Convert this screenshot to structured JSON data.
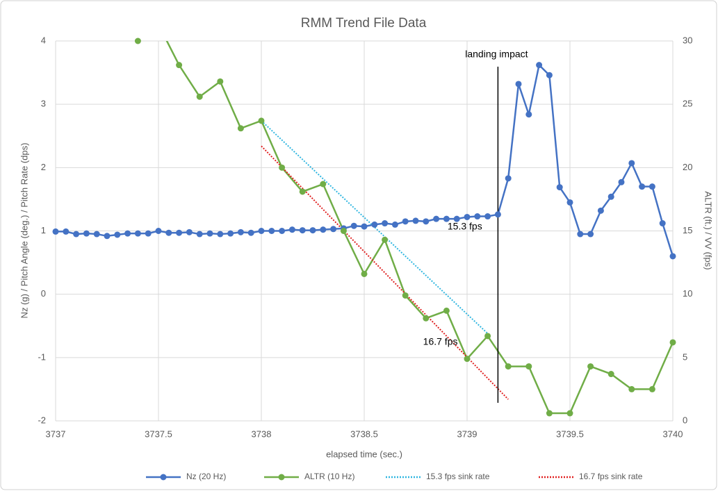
{
  "chart_data": {
    "type": "line",
    "title": "RMM Trend File Data",
    "x_label": "elapsed time (sec.)",
    "y_label": "Nz (g) / Pitch Angle (deg.) / Pitch Rate (dps)",
    "y2_label": "ALTR (ft.) / VV (fps)",
    "xlim": [
      3737,
      3740
    ],
    "xticks": [
      3737,
      3737.5,
      3738,
      3738.5,
      3739,
      3739.5,
      3740
    ],
    "ylim": [
      -2,
      4
    ],
    "yticks": [
      -2,
      -1,
      0,
      1,
      2,
      3,
      4
    ],
    "y2lim": [
      0,
      30
    ],
    "y2ticks": [
      0,
      5,
      10,
      15,
      20,
      25,
      30
    ],
    "grid": true,
    "legend": "bottom",
    "series": [
      {
        "name": "Nz (20 Hz)",
        "color": "#4472c4",
        "style": "solid",
        "marker": true,
        "axis": "y",
        "x": [
          3737,
          3737.05,
          3737.1,
          3737.15,
          3737.2,
          3737.25,
          3737.3,
          3737.35,
          3737.4,
          3737.45,
          3737.5,
          3737.55,
          3737.6,
          3737.65,
          3737.7,
          3737.75,
          3737.8,
          3737.85,
          3737.9,
          3737.95,
          3738,
          3738.05,
          3738.1,
          3738.15,
          3738.2,
          3738.25,
          3738.3,
          3738.35,
          3738.4,
          3738.45,
          3738.5,
          3738.55,
          3738.6,
          3738.65,
          3738.7,
          3738.75,
          3738.8,
          3738.85,
          3738.9,
          3738.95,
          3739,
          3739.05,
          3739.1,
          3739.15,
          3739.2,
          3739.25,
          3739.3,
          3739.35,
          3739.4,
          3739.45,
          3739.5,
          3739.55,
          3739.6,
          3739.65,
          3739.7,
          3739.75,
          3739.8,
          3739.85,
          3739.9,
          3739.95,
          3740
        ],
        "values": [
          0.99,
          0.99,
          0.95,
          0.96,
          0.95,
          0.92,
          0.94,
          0.96,
          0.96,
          0.96,
          1.0,
          0.97,
          0.97,
          0.98,
          0.95,
          0.96,
          0.95,
          0.96,
          0.98,
          0.97,
          1.0,
          1.0,
          1.0,
          1.02,
          1.01,
          1.01,
          1.02,
          1.03,
          1.04,
          1.08,
          1.07,
          1.1,
          1.12,
          1.1,
          1.15,
          1.16,
          1.15,
          1.19,
          1.19,
          1.19,
          1.22,
          1.23,
          1.23,
          1.26,
          1.83,
          3.32,
          2.84,
          3.62,
          3.46,
          1.69,
          1.45,
          0.95,
          0.95,
          1.32,
          1.54,
          1.77,
          2.07,
          1.7,
          1.7,
          1.12,
          0.6
        ]
      },
      {
        "name": "ALTR (10 Hz)",
        "color": "#70ad47",
        "style": "solid",
        "marker": true,
        "axis": "y2",
        "x": [
          3737.4,
          3737.5,
          3737.6,
          3737.7,
          3737.8,
          3737.9,
          3738,
          3738.1,
          3738.2,
          3738.3,
          3738.4,
          3738.5,
          3738.6,
          3738.7,
          3738.8,
          3738.9,
          3739,
          3739.1,
          3739.2,
          3739.3,
          3739.4,
          3739.5,
          3739.6,
          3739.7,
          3739.8,
          3739.9,
          3740
        ],
        "values": [
          30,
          31.3,
          28.1,
          25.6,
          26.8,
          23.1,
          23.7,
          20.0,
          18.1,
          18.7,
          15.0,
          11.6,
          14.3,
          9.9,
          8.1,
          8.7,
          4.9,
          6.7,
          4.3,
          4.3,
          0.6,
          0.6,
          4.3,
          3.7,
          2.5,
          2.5,
          6.2
        ]
      },
      {
        "name": "15.3 fps sink rate",
        "color": "#2fb6e0",
        "style": "dotted",
        "marker": false,
        "axis": "y2",
        "annotation": "15.3 fps",
        "x": [
          3738,
          3739.1
        ],
        "values": [
          23.7,
          6.9
        ]
      },
      {
        "name": "16.7 fps sink rate",
        "color": "#e02020",
        "style": "dotted",
        "marker": false,
        "axis": "y2",
        "annotation": "16.7 fps",
        "x": [
          3738,
          3739.2
        ],
        "values": [
          21.7,
          1.7
        ]
      }
    ],
    "vlines": [
      {
        "x": 3739.15,
        "label": "landing impact"
      }
    ]
  }
}
